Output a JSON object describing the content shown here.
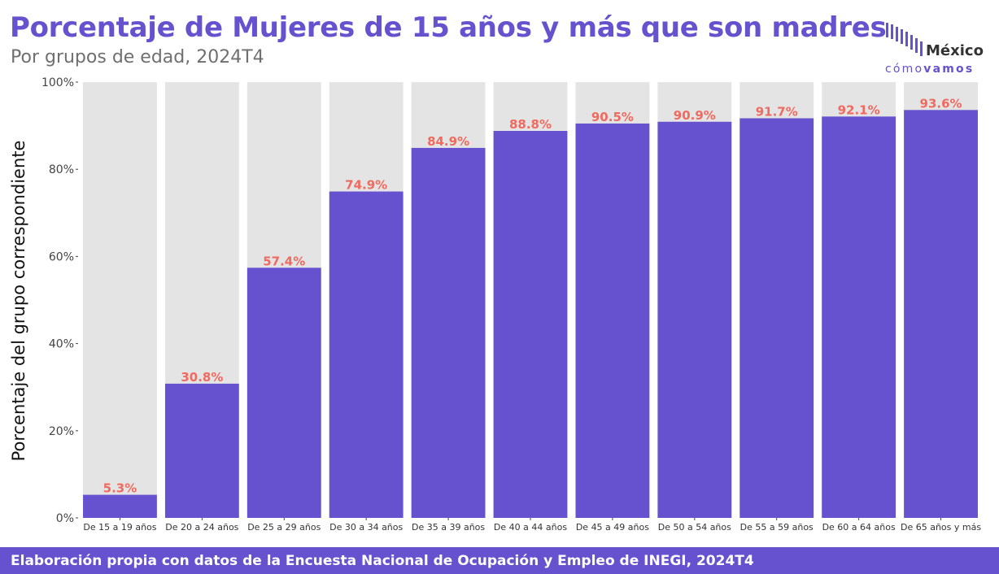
{
  "header": {
    "title": "Porcentaje de Mujeres de 15 años y más que son madres",
    "subtitle": "Por grupos de edad, 2024T4"
  },
  "logo": {
    "top": "México",
    "bottom_light": "cómo",
    "bottom_bold": "vamos"
  },
  "footer": {
    "text": "Elaboración propia con datos de la Encuesta Nacional de Ocupación y Empleo de INEGI, 2024T4"
  },
  "colors": {
    "accent": "#6651cf",
    "bar": "#6651cf",
    "background_bar": "#e4e4e4",
    "data_label": "#f06a5f"
  },
  "chart_data": {
    "type": "bar",
    "title": "Porcentaje de Mujeres de 15 años y más que son madres",
    "subtitle": "Por grupos de edad, 2024T4",
    "xlabel": "",
    "ylabel": "Porcentaje del grupo correspondiente",
    "ylim": [
      0,
      100
    ],
    "yticks": [
      "0%",
      "20%",
      "40%",
      "60%",
      "80%",
      "100%"
    ],
    "categories": [
      "De 15 a 19 años",
      "De 20 a 24 años",
      "De 25 a 29 años",
      "De 30 a 34 años",
      "De 35 a 39 años",
      "De 40 a 44 años",
      "De 45 a 49 años",
      "De 50 a 54 años",
      "De 55 a 59 años",
      "De 60 a 64 años",
      "De 65 años y más"
    ],
    "values": [
      5.3,
      30.8,
      57.4,
      74.9,
      84.9,
      88.8,
      90.5,
      90.9,
      91.7,
      92.1,
      93.6
    ],
    "data_labels": [
      "5.3%",
      "30.8%",
      "57.4%",
      "74.9%",
      "84.9%",
      "88.8%",
      "90.5%",
      "90.9%",
      "91.7%",
      "92.1%",
      "93.6%"
    ],
    "background_bars": true,
    "grid": false,
    "legend": "none"
  }
}
